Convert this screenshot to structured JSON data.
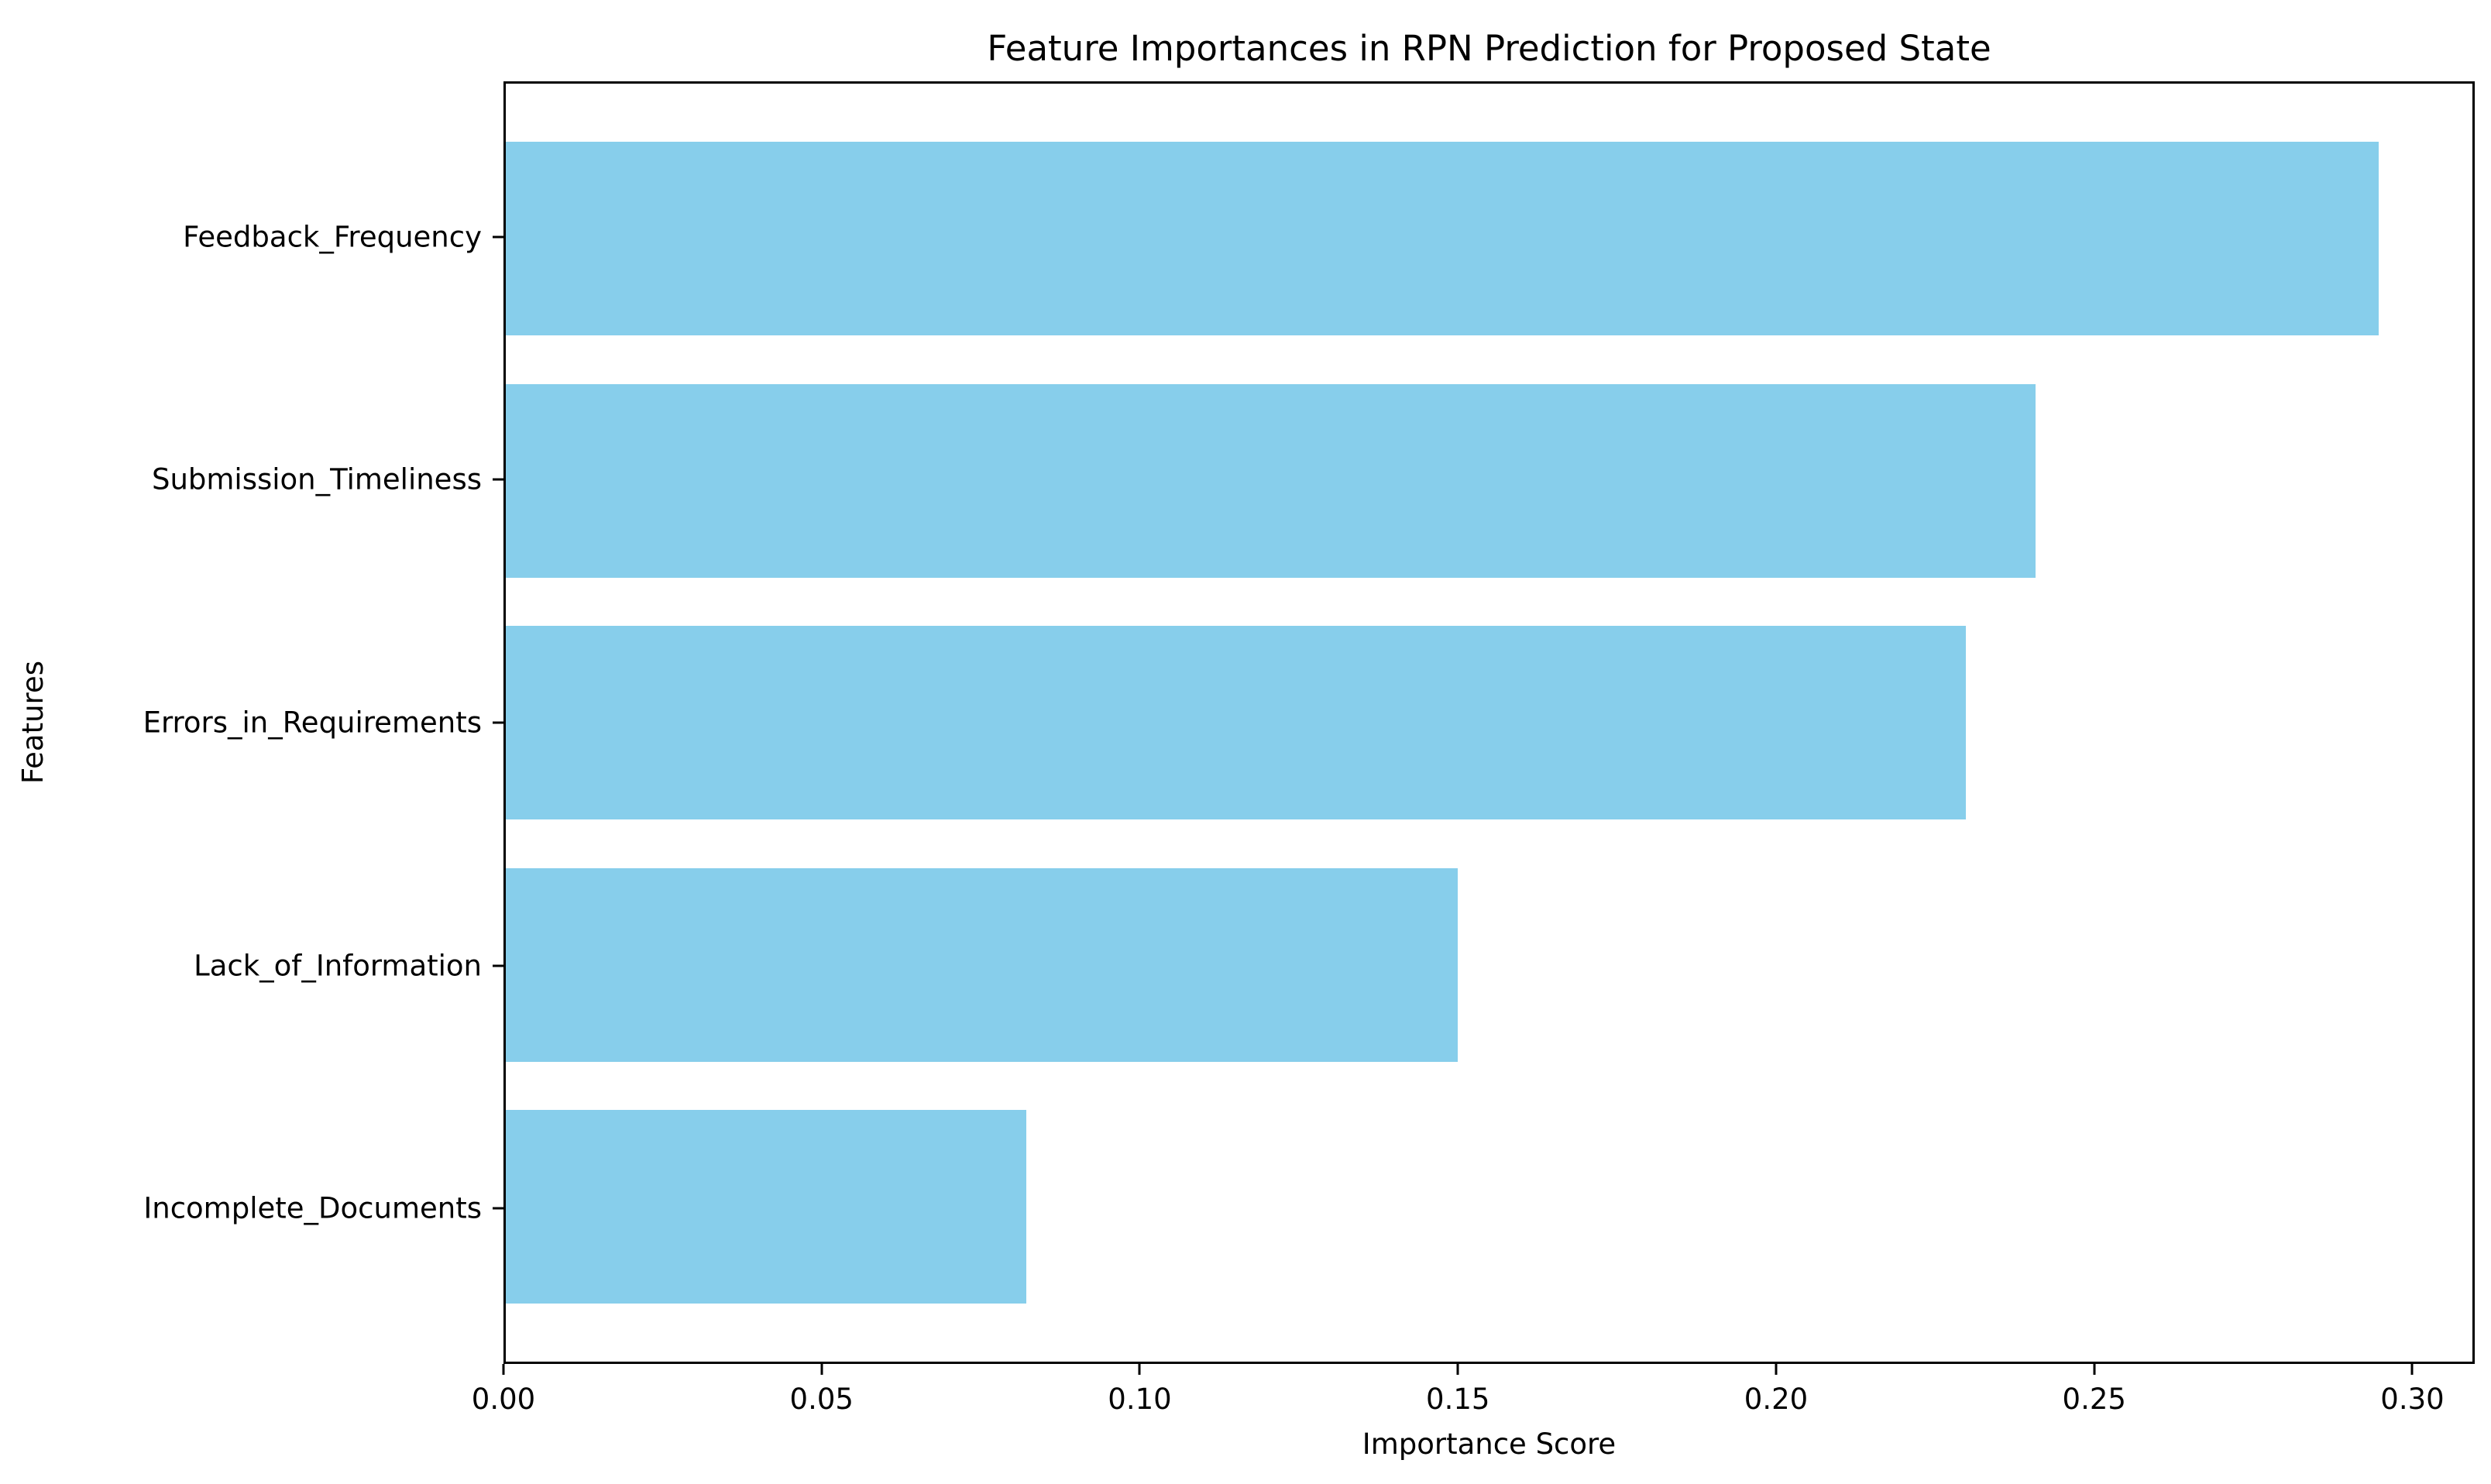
{
  "chart_data": {
    "type": "bar",
    "orientation": "horizontal",
    "title": "Feature Importances in RPN Prediction for Proposed State",
    "xlabel": "Importance Score",
    "ylabel": "Features",
    "categories": [
      "Feedback_Frequency",
      "Submission_Timeliness",
      "Errors_in_Requirements",
      "Lack_of_Information",
      "Incomplete_Documents"
    ],
    "values": [
      0.295,
      0.241,
      0.23,
      0.15,
      0.082
    ],
    "bar_color": "#87CEEB",
    "xlim": [
      0,
      0.3098
    ],
    "x_ticks": [
      0.0,
      0.05,
      0.1,
      0.15,
      0.2,
      0.25,
      0.3
    ],
    "x_tick_labels": [
      "0.00",
      "0.05",
      "0.10",
      "0.15",
      "0.20",
      "0.25",
      "0.30"
    ],
    "grid": false,
    "legend": null,
    "background_color": "#ffffff",
    "spine_color": "#000000",
    "text_color": "#000000"
  }
}
